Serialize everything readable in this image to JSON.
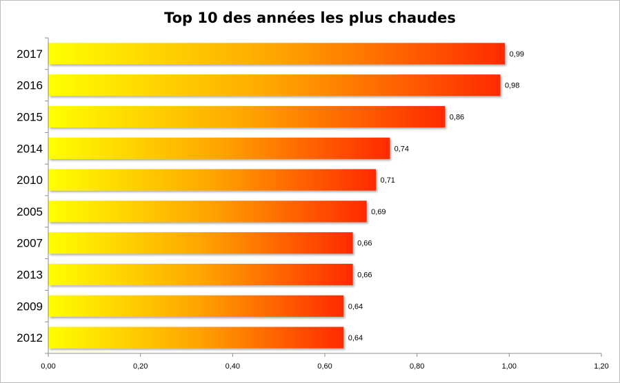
{
  "chart_data": {
    "type": "bar",
    "orientation": "horizontal",
    "title": "Top 10 des années les plus chaudes",
    "categories": [
      "2017",
      "2016",
      "2015",
      "2014",
      "2010",
      "2005",
      "2007",
      "2013",
      "2009",
      "2012"
    ],
    "values": [
      0.99,
      0.98,
      0.86,
      0.74,
      0.71,
      0.69,
      0.66,
      0.66,
      0.64,
      0.64
    ],
    "data_labels": [
      "0,99",
      "0,98",
      "0,86",
      "0,74",
      "0,71",
      "0,69",
      "0,66",
      "0,66",
      "0,64",
      "0,64"
    ],
    "x_ticks": [
      "0,00",
      "0,20",
      "0,40",
      "0,60",
      "0,80",
      "1,00",
      "1,20"
    ],
    "xlim": [
      0,
      1.2
    ],
    "xlabel": "",
    "ylabel": "",
    "grid": false,
    "legend": "none",
    "bar_gradient": [
      "#ffff00",
      "#ffa500",
      "#ff2a00"
    ]
  }
}
